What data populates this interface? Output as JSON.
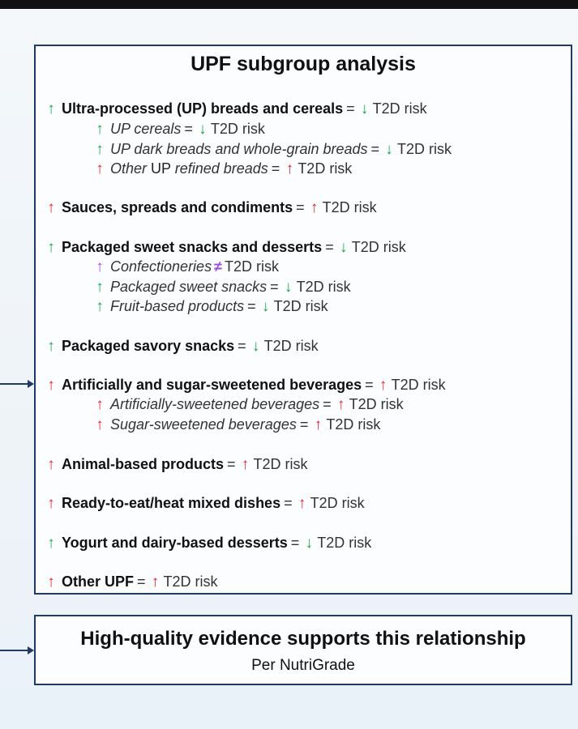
{
  "header": {
    "title": "UPF subgroup analysis"
  },
  "risk_label": "T2D risk",
  "equals": "=",
  "not_equal": "≠",
  "rows": [
    {
      "arrow": "up",
      "color": "#1aa64a",
      "label": "Ultra-processed (UP) breads and cereals",
      "style": "main",
      "risk_arrow": "down",
      "risk_color": "#1aa64a"
    },
    {
      "arrow": "up",
      "color": "#1aa64a",
      "label": "UP cereals",
      "style": "sub",
      "risk_arrow": "down",
      "risk_color": "#1aa64a"
    },
    {
      "arrow": "up",
      "color": "#1aa64a",
      "label": "UP dark breads and whole-grain  breads",
      "style": "sub",
      "risk_arrow": "down",
      "risk_color": "#1aa64a"
    },
    {
      "arrow": "up",
      "color": "#e8232a",
      "label_prefix": "Other",
      "label_plain": "UP",
      "label_suffix": "refined breads",
      "style": "sub",
      "risk_arrow": "up",
      "risk_color": "#e8232a"
    },
    {
      "arrow": "up",
      "color": "#e8232a",
      "label": "Sauces, spreads and condiments",
      "style": "main",
      "risk_arrow": "up",
      "risk_color": "#e8232a"
    },
    {
      "arrow": "up",
      "color": "#1aa64a",
      "label": "Packaged sweet snacks and desserts",
      "style": "main",
      "risk_arrow": "down",
      "risk_color": "#1aa64a"
    },
    {
      "arrow": "up",
      "color": "#a24be0",
      "label": "Confectioneries",
      "style": "sub",
      "risk_arrow": "neq",
      "risk_color": "#a24be0"
    },
    {
      "arrow": "up",
      "color": "#1aa64a",
      "label": "Packaged sweet  snacks",
      "style": "sub",
      "risk_arrow": "down",
      "risk_color": "#1aa64a"
    },
    {
      "arrow": "up",
      "color": "#1aa64a",
      "label": "Fruit-based products",
      "style": "sub",
      "risk_arrow": "down",
      "risk_color": "#1aa64a"
    },
    {
      "arrow": "up",
      "color": "#1aa64a",
      "label": "Packaged savory snacks",
      "style": "main",
      "risk_arrow": "down",
      "risk_color": "#1aa64a"
    },
    {
      "arrow": "up",
      "color": "#e8232a",
      "label": "Artificially and sugar-sweetened beverages",
      "style": "main",
      "risk_arrow": "up",
      "risk_color": "#e8232a"
    },
    {
      "arrow": "up",
      "color": "#e8232a",
      "label": "Artificially-sweetened  beverages",
      "style": "sub",
      "risk_arrow": "up",
      "risk_color": "#e8232a"
    },
    {
      "arrow": "up",
      "color": "#e8232a",
      "label": "Sugar-sweetened  beverages",
      "style": "sub",
      "risk_arrow": "up",
      "risk_color": "#e8232a"
    },
    {
      "arrow": "up",
      "color": "#e8232a",
      "label": "Animal-based  products",
      "style": "main",
      "risk_arrow": "up",
      "risk_color": "#e8232a"
    },
    {
      "arrow": "up",
      "color": "#e8232a",
      "label": "Ready-to-eat/heat  mixed dishes",
      "style": "main",
      "risk_arrow": "up",
      "risk_color": "#e8232a"
    },
    {
      "arrow": "up",
      "color": "#1aa64a",
      "label": "Yogurt and dairy-based desserts",
      "style": "main",
      "risk_arrow": "down",
      "risk_color": "#1aa64a"
    },
    {
      "arrow": "up",
      "color": "#e8232a",
      "label": "Other UPF",
      "style": "main",
      "risk_arrow": "up",
      "risk_color": "#e8232a"
    }
  ],
  "evidence": {
    "headline": "High-quality evidence supports this relationship",
    "subline": "Per NutriGrade"
  }
}
